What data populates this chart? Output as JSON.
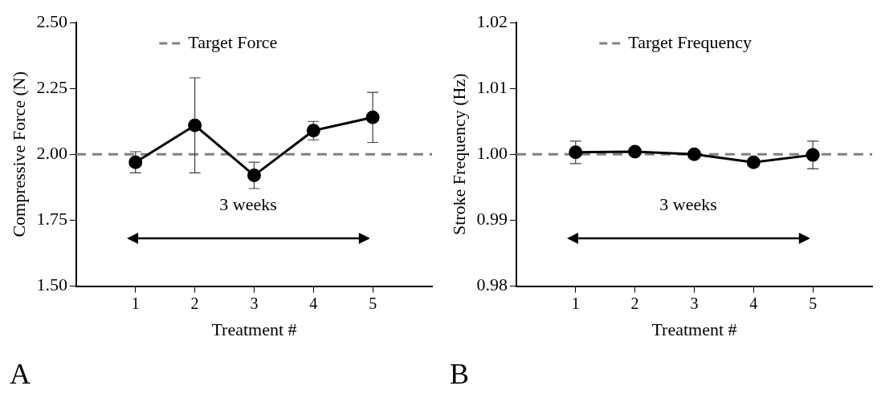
{
  "chart_data": [
    {
      "type": "line",
      "xlabel": "Treatment #",
      "ylabel": "Compressive Force (N)",
      "x": [
        1,
        2,
        3,
        4,
        5
      ],
      "xlim": [
        0,
        6
      ],
      "xticks": [
        1,
        2,
        3,
        4,
        5
      ],
      "ylim": [
        1.5,
        2.5
      ],
      "yticks": [
        {
          "value": 1.5,
          "label": "1.50"
        },
        {
          "value": 1.75,
          "label": "1.75"
        },
        {
          "value": 2,
          "label": "2.00"
        },
        {
          "value": 2.25,
          "label": "2.25"
        },
        {
          "value": 2.5,
          "label": "2.50"
        }
      ],
      "grid": false,
      "marker": "circle",
      "line_style": "solid",
      "series": [
        {
          "color": "#000000",
          "values": [
            1.97,
            2.11,
            1.92,
            2.09,
            2.14
          ],
          "errors": [
            0.04,
            0.18,
            0.05,
            0.035,
            0.095
          ]
        }
      ],
      "ref_lines": [
        {
          "axis": "y",
          "value": 2,
          "label": "Target Force",
          "color": "#808080",
          "line_style": "dashed"
        }
      ],
      "annotations": [
        "3 weeks",
        "A"
      ]
    },
    {
      "type": "line",
      "xlabel": "Treatment #",
      "ylabel": "Stroke Frequency (Hz)",
      "x": [
        1,
        2,
        3,
        4,
        5
      ],
      "xlim": [
        0,
        6
      ],
      "xticks": [
        1,
        2,
        3,
        4,
        5
      ],
      "ylim": [
        0.98,
        1.02
      ],
      "yticks": [
        {
          "value": 0.98,
          "label": "0.98"
        },
        {
          "value": 0.99,
          "label": "0.99"
        },
        {
          "value": 1,
          "label": "1.00"
        },
        {
          "value": 1.01,
          "label": "1.01"
        },
        {
          "value": 1.02,
          "label": "1.02"
        }
      ],
      "grid": false,
      "marker": "circle",
      "line_style": "solid",
      "series": [
        {
          "color": "#000000",
          "values": [
            1.0003,
            1.0004,
            1.0,
            0.9988,
            0.9999
          ],
          "errors": [
            0.0017,
            0.0002,
            0.0002,
            0.0005,
            0.0021
          ]
        }
      ],
      "ref_lines": [
        {
          "axis": "y",
          "value": 1,
          "label": "Target Frequency",
          "color": "#808080",
          "line_style": "dashed"
        }
      ],
      "annotations": [
        "3 weeks",
        "B"
      ]
    }
  ]
}
